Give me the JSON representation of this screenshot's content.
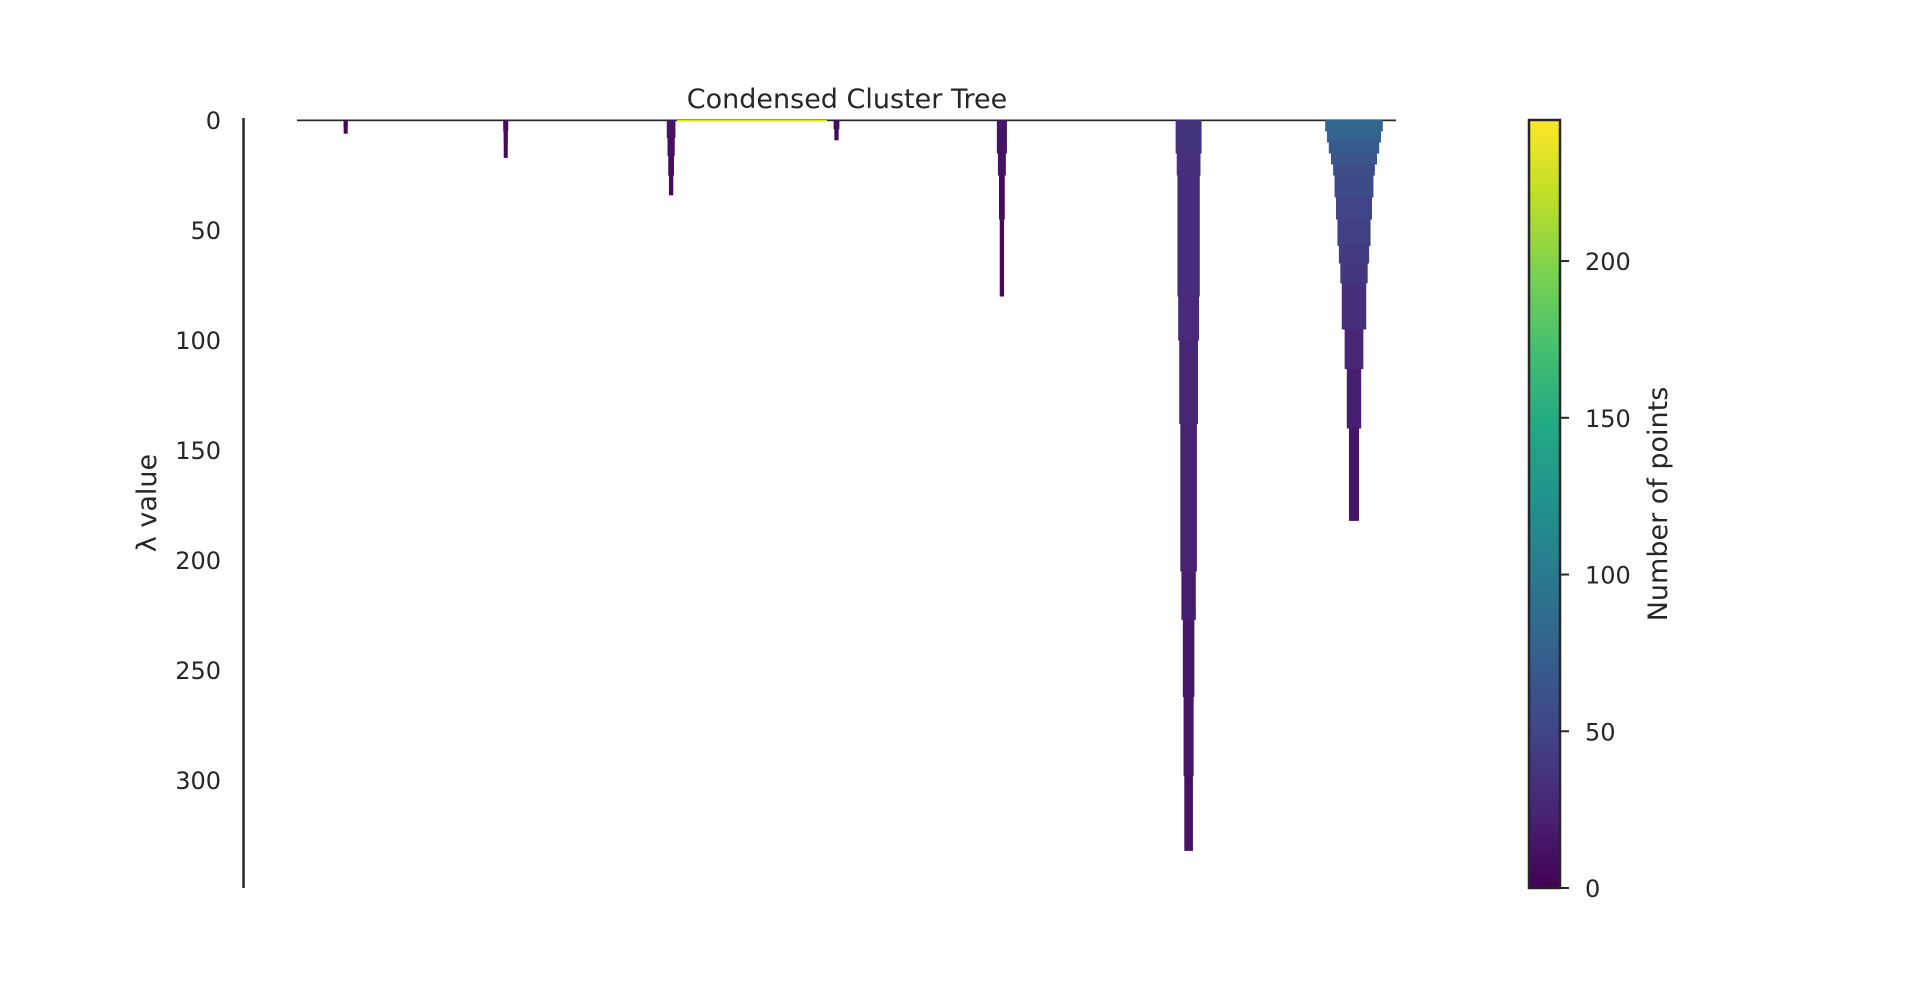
{
  "chart_data": {
    "type": "icicle",
    "title": "Condensed Cluster Tree",
    "ylabel": "λ value",
    "ylim": [
      0,
      350
    ],
    "y_inverted": true,
    "y_ticks": [
      0,
      50,
      100,
      150,
      200,
      250,
      300
    ],
    "colorbar": {
      "label": "Number of points",
      "colormap": "viridis",
      "range": [
        0,
        245
      ],
      "ticks": [
        0,
        50,
        100,
        150,
        200
      ]
    },
    "root_bar": {
      "lambda_end": 0.5,
      "points": 240,
      "color": "#e3e418"
    },
    "clusters": [
      {
        "center": 0.04,
        "lambda_birth": 0,
        "lambda_death": 6,
        "size_profile": [
          [
            0,
            6
          ],
          [
            3,
            4
          ],
          [
            6,
            3
          ]
        ]
      },
      {
        "center": 0.19,
        "lambda_birth": 0,
        "lambda_death": 17,
        "size_profile": [
          [
            0,
            7
          ],
          [
            5,
            6
          ],
          [
            10,
            5
          ],
          [
            17,
            4
          ]
        ]
      },
      {
        "center": 0.345,
        "lambda_birth": 0,
        "lambda_death": 34,
        "size_profile": [
          [
            0,
            12
          ],
          [
            8,
            10
          ],
          [
            16,
            8
          ],
          [
            25,
            6
          ],
          [
            34,
            4
          ]
        ]
      },
      {
        "center": 0.5,
        "lambda_birth": 0,
        "lambda_death": 9,
        "size_profile": [
          [
            0,
            8
          ],
          [
            4,
            6
          ],
          [
            9,
            4
          ]
        ]
      },
      {
        "center": 0.655,
        "lambda_birth": 0,
        "lambda_death": 80,
        "size_profile": [
          [
            0,
            14
          ],
          [
            15,
            11
          ],
          [
            25,
            8
          ],
          [
            45,
            6
          ],
          [
            80,
            4
          ]
        ]
      },
      {
        "center": 0.83,
        "lambda_birth": 0,
        "lambda_death": 332,
        "size_profile": [
          [
            0,
            36
          ],
          [
            15,
            33
          ],
          [
            25,
            31
          ],
          [
            80,
            29
          ],
          [
            100,
            26
          ],
          [
            138,
            23
          ],
          [
            205,
            20
          ],
          [
            227,
            16
          ],
          [
            262,
            14
          ],
          [
            298,
            12
          ],
          [
            332,
            10
          ]
        ]
      },
      {
        "center": 0.985,
        "lambda_birth": 0,
        "lambda_death": 182,
        "size_profile": [
          [
            0,
            80
          ],
          [
            5,
            75
          ],
          [
            10,
            70
          ],
          [
            15,
            64
          ],
          [
            20,
            58
          ],
          [
            25,
            54
          ],
          [
            35,
            50
          ],
          [
            45,
            46
          ],
          [
            57,
            42
          ],
          [
            65,
            38
          ],
          [
            74,
            34
          ],
          [
            95,
            26
          ],
          [
            113,
            20
          ],
          [
            140,
            14
          ],
          [
            182,
            10
          ]
        ]
      }
    ]
  }
}
